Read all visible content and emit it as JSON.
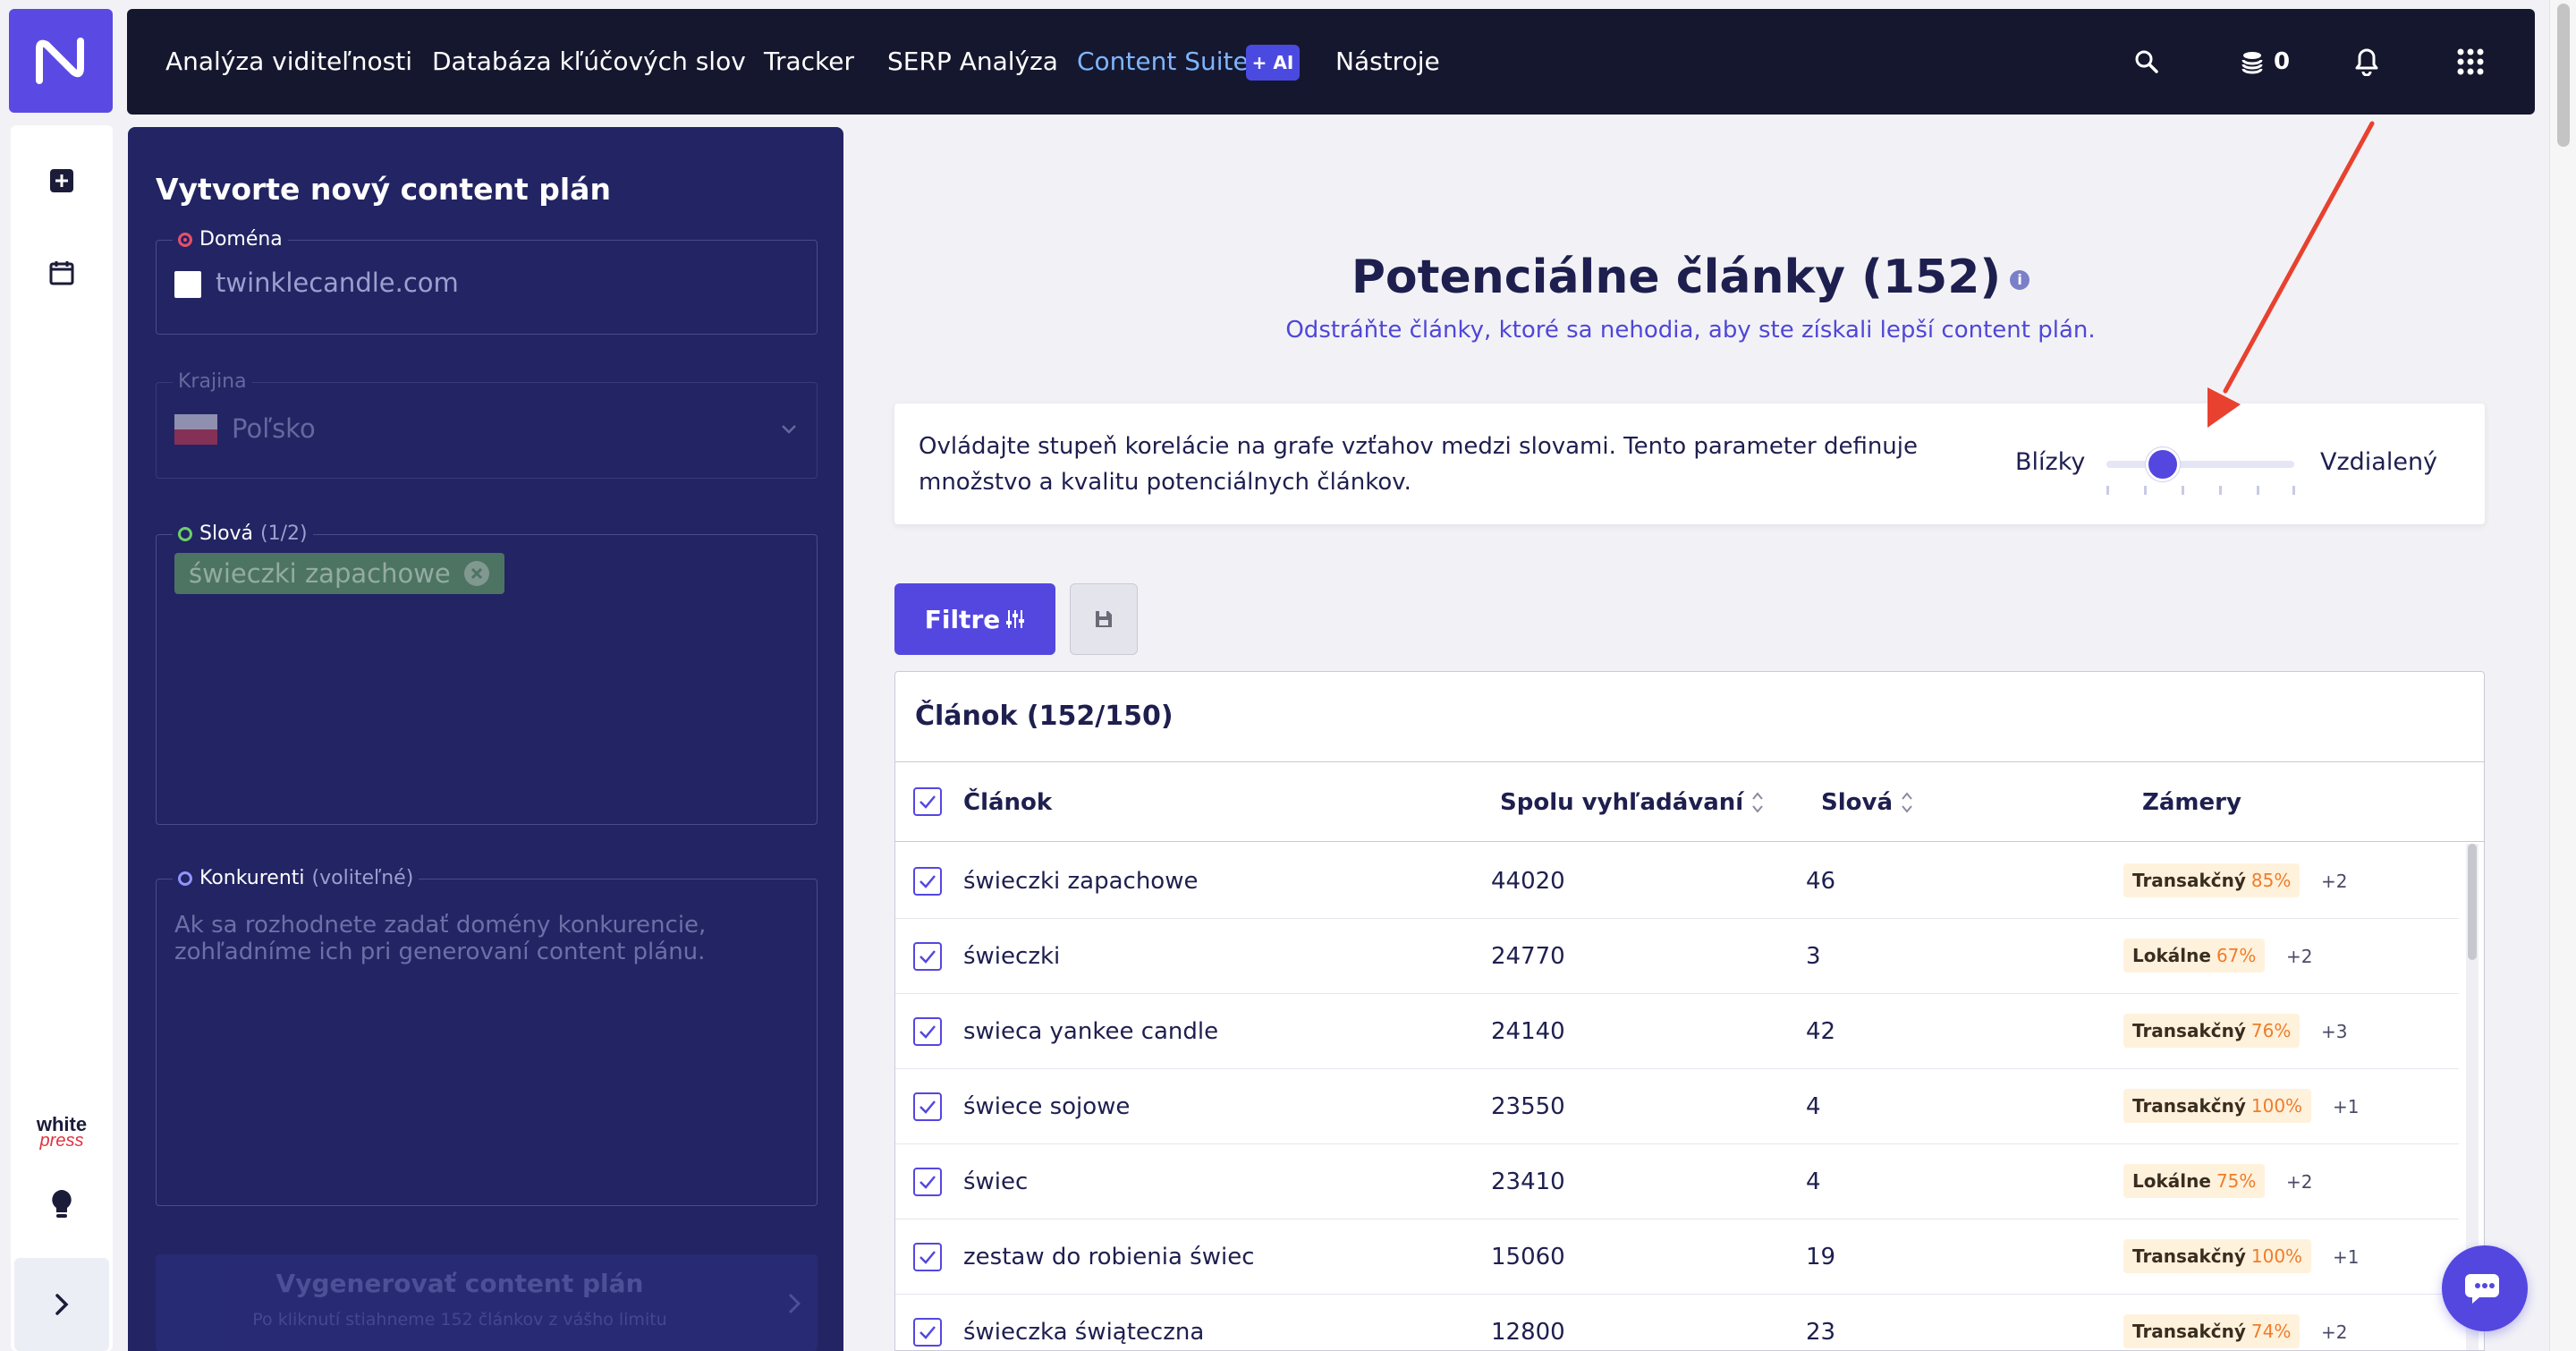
{
  "nav": {
    "items": [
      {
        "label": "Analýza viditeľnosti",
        "active": false
      },
      {
        "label": "Databáza kľúčových slov",
        "active": false
      },
      {
        "label": "Tracker",
        "active": false
      },
      {
        "label": "SERP Analýza",
        "active": false
      },
      {
        "label": "Content Suite",
        "active": true
      },
      {
        "label": "Nástroje",
        "active": false
      }
    ],
    "ai_badge": "+ AI",
    "credits": "0",
    "icons": [
      "search-icon",
      "coins-icon",
      "bell-icon",
      "apps-grid-icon"
    ]
  },
  "rail": {
    "icons": [
      "add-icon",
      "calendar-icon",
      "bulb-icon",
      "chevron-right-icon"
    ],
    "brand_line1": "white",
    "brand_line2": "press"
  },
  "form": {
    "title": "Vytvorte nový content plán",
    "domain_label": "Doména",
    "domain_value": "twinklecandle.com",
    "country_label": "Krajina",
    "country_value": "Poľsko",
    "words_label": "Slová",
    "words_count": "(1/2)",
    "word_tag": "świeczki zapachowe",
    "competitors_label": "Konkurenti",
    "competitors_optional": "(voliteľné)",
    "competitors_placeholder": "Ak sa rozhodnete zadať domény konkurencie, zohľadníme ich pri generovaní content plánu.",
    "generate_label": "Vygenerovať content plán",
    "generate_note": "Po kliknutí stiahneme 152 článkov z vášho limitu"
  },
  "main": {
    "title": "Potenciálne články (152)",
    "subtitle": "Odstráňte články, ktoré sa nehodia, aby ste získali lepší content plán.",
    "correlation_text": "Ovládajte stupeň korelácie na grafe vzťahov medzi slovami. Tento parameter definuje množstvo a kvalitu potenciálnych článkov.",
    "slider_left": "Blízky",
    "slider_right": "Vzdialený",
    "slider_level": 0.3,
    "filter_label": "Filtre",
    "table_title": "Článok (152/150)",
    "columns": [
      "Článok",
      "Spolu vyhľadávaní",
      "Slová",
      "Zámery"
    ],
    "rows": [
      {
        "article": "świeczki zapachowe",
        "searches": "44020",
        "words": "46",
        "intent": "Transakčný",
        "pct": "85%",
        "more": "+2"
      },
      {
        "article": "świeczki",
        "searches": "24770",
        "words": "3",
        "intent": "Lokálne",
        "pct": "67%",
        "more": "+2"
      },
      {
        "article": "swieca yankee candle",
        "searches": "24140",
        "words": "42",
        "intent": "Transakčný",
        "pct": "76%",
        "more": "+3"
      },
      {
        "article": "świece sojowe",
        "searches": "23550",
        "words": "4",
        "intent": "Transakčný",
        "pct": "100%",
        "more": "+1"
      },
      {
        "article": "świec",
        "searches": "23410",
        "words": "4",
        "intent": "Lokálne",
        "pct": "75%",
        "more": "+2"
      },
      {
        "article": "zestaw do robienia świec",
        "searches": "15060",
        "words": "19",
        "intent": "Transakčný",
        "pct": "100%",
        "more": "+1"
      },
      {
        "article": "świeczka świąteczna",
        "searches": "12800",
        "words": "23",
        "intent": "Transakčný",
        "pct": "74%",
        "more": "+2"
      }
    ]
  },
  "colors": {
    "accent": "#5447e0",
    "nav_bg": "#15172e",
    "panel_bg": "#232463",
    "annotation_arrow": "#e8412f"
  }
}
